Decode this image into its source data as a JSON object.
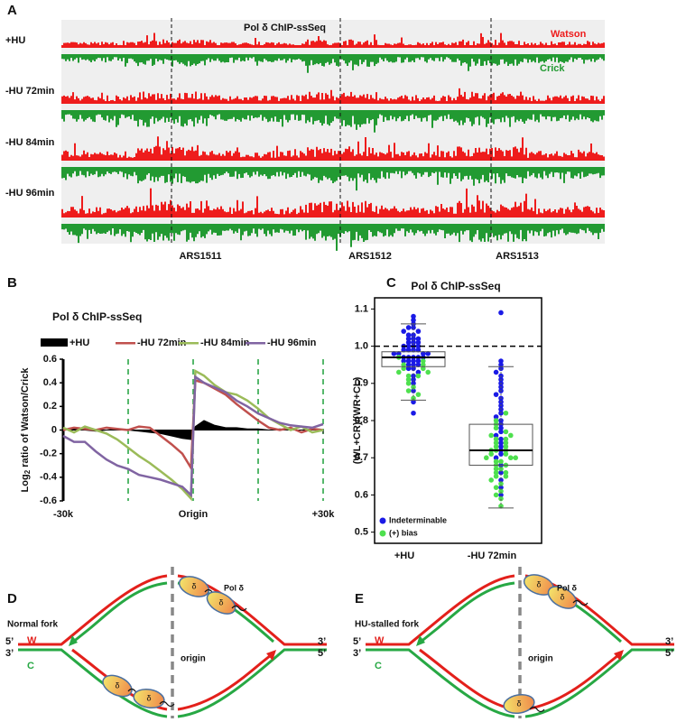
{
  "panel_a": {
    "letter": "A",
    "title": "Pol δ ChIP-ssSeq",
    "watson": "Watson",
    "crick": "Crick",
    "rows": [
      "+HU",
      "-HU 72min",
      "-HU 84min",
      "-HU 96min"
    ],
    "loci": [
      "ARS1511",
      "ARS1512",
      "ARS1513"
    ]
  },
  "chart_data": [
    {
      "type": "line",
      "letter": "B",
      "title": "Pol δ ChIP-ssSeq",
      "y_label": {
        "main": "Log",
        "sub": "2",
        "rest": " ratio of Watson/Crick"
      },
      "x": [
        -30000,
        -27500,
        -25000,
        -22500,
        -20000,
        -17500,
        -15000,
        -12500,
        -10000,
        -7500,
        -5000,
        -2500,
        -500,
        500,
        2500,
        5000,
        7500,
        10000,
        12500,
        15000,
        17500,
        20000,
        22500,
        25000,
        27500,
        30000
      ],
      "series": [
        {
          "name": "+HU",
          "color": "#000000",
          "fill": true,
          "values": [
            0,
            0.01,
            0,
            -0.01,
            0,
            0.01,
            0,
            -0.01,
            -0.02,
            -0.03,
            -0.05,
            -0.07,
            -0.08,
            0.03,
            0.08,
            0.04,
            0.02,
            0.02,
            0.01,
            0.01,
            0,
            0.01,
            0,
            0,
            0.01,
            0
          ]
        },
        {
          "name": "-HU 72min",
          "color": "#c0504d",
          "values": [
            0,
            0.02,
            0.01,
            0,
            0.02,
            0.01,
            0,
            0.03,
            0.02,
            -0.05,
            -0.12,
            -0.2,
            -0.32,
            0.42,
            0.4,
            0.35,
            0.3,
            0.22,
            0.15,
            0.08,
            0.02,
            0,
            0.02,
            -0.02,
            0.01,
            0
          ]
        },
        {
          "name": "-HU 84min",
          "color": "#9bbb59",
          "values": [
            0.02,
            -0.02,
            0.03,
            0,
            -0.03,
            -0.08,
            -0.15,
            -0.22,
            -0.28,
            -0.35,
            -0.42,
            -0.5,
            -0.58,
            0.5,
            0.46,
            0.38,
            0.32,
            0.3,
            0.25,
            0.18,
            0.1,
            0.05,
            0,
            0.03,
            -0.02,
            0
          ]
        },
        {
          "name": "-HU 96min",
          "color": "#8064a2",
          "values": [
            -0.05,
            -0.1,
            -0.1,
            -0.18,
            -0.25,
            -0.3,
            -0.33,
            -0.38,
            -0.4,
            -0.42,
            -0.45,
            -0.48,
            -0.55,
            0.45,
            0.4,
            0.36,
            0.32,
            0.25,
            0.2,
            0.14,
            0.1,
            0.06,
            0.04,
            0.03,
            0.02,
            0.05
          ]
        }
      ],
      "xlim": [
        -30000,
        30000
      ],
      "xticks": [
        {
          "value": -30000,
          "label": "-30k"
        },
        {
          "value": 0,
          "label": "Origin"
        },
        {
          "value": 30000,
          "label": "+30k"
        }
      ],
      "ylim": [
        -0.6,
        0.6
      ],
      "yticks": [
        -0.6,
        -0.4,
        -0.2,
        0,
        0.2,
        0.4,
        0.6
      ],
      "guide_lines": [
        -15000,
        0,
        15000,
        30000
      ],
      "guide_color": "#1ea03c"
    },
    {
      "type": "beeswarm",
      "letter": "C",
      "title": "Pol δ ChIP-ssSeq",
      "y_label": "(WL+CR)/(WR+CL)",
      "categories": [
        "+HU",
        "-HU 72min"
      ],
      "series": [
        {
          "name": "Indeterminable",
          "color": "#1a1ae6",
          "values": [
            [
              1.08,
              1.07,
              1.06,
              1.05,
              1.05,
              1.04,
              1.04,
              1.03,
              1.03,
              1.02,
              1.02,
              1.02,
              1.01,
              1.01,
              1.01,
              1.0,
              1.0,
              1.0,
              1.0,
              0.99,
              0.99,
              0.99,
              0.99,
              0.98,
              0.98,
              0.98,
              0.98,
              0.97,
              0.97,
              0.97,
              0.97,
              0.97,
              0.96,
              0.96,
              0.96,
              0.96,
              0.95,
              0.95,
              0.95,
              0.94,
              0.94,
              0.93,
              0.92,
              0.91,
              0.9,
              0.88,
              0.85,
              0.82
            ],
            [
              1.09,
              0.96,
              0.95,
              0.94,
              0.93,
              0.92,
              0.91,
              0.9,
              0.89,
              0.88,
              0.87,
              0.86,
              0.85,
              0.84,
              0.83,
              0.82,
              0.81,
              0.8,
              0.79,
              0.78,
              0.77,
              0.76,
              0.75,
              0.74,
              0.73,
              0.72,
              0.71,
              0.7,
              0.68,
              0.66,
              0.64,
              0.62,
              0.6
            ]
          ]
        },
        {
          "name": "(+) bias",
          "color": "#4ee04e",
          "values": [
            [
              0.97,
              0.96,
              0.95,
              0.95,
              0.94,
              0.94,
              0.93,
              0.93,
              0.92,
              0.92,
              0.91,
              0.9,
              0.89,
              0.88,
              0.87,
              0.86
            ],
            [
              0.82,
              0.8,
              0.79,
              0.78,
              0.77,
              0.76,
              0.76,
              0.75,
              0.75,
              0.74,
              0.74,
              0.73,
              0.73,
              0.72,
              0.72,
              0.72,
              0.71,
              0.71,
              0.7,
              0.7,
              0.7,
              0.69,
              0.69,
              0.68,
              0.68,
              0.67,
              0.67,
              0.66,
              0.66,
              0.65,
              0.65,
              0.64,
              0.63,
              0.62,
              0.61,
              0.6,
              0.59,
              0.57
            ]
          ]
        }
      ],
      "boxes": [
        {
          "whislo": 0.855,
          "q1": 0.945,
          "med": 0.97,
          "q3": 0.985,
          "whishi": 1.06
        },
        {
          "whislo": 0.565,
          "q1": 0.68,
          "med": 0.72,
          "q3": 0.79,
          "whishi": 0.945
        }
      ],
      "ylim": [
        0.47,
        1.13
      ],
      "yticks": [
        0.5,
        0.6,
        0.7,
        0.8,
        0.9,
        {
          "value": 1,
          "label": "1.0"
        },
        1.1
      ],
      "reference_line": 1
    }
  ],
  "panel_d": {
    "letter": "D",
    "title": "Normal fork",
    "five": "5’",
    "three": "3’",
    "w": "W",
    "c": "C",
    "origin": "origin",
    "pol": "Pol δ",
    "delta": "δ"
  },
  "panel_e": {
    "letter": "E",
    "title": "HU-stalled fork",
    "five": "5’",
    "three": "3’",
    "w": "W",
    "c": "C",
    "origin": "origin",
    "pol": "Pol δ",
    "delta": "δ"
  }
}
